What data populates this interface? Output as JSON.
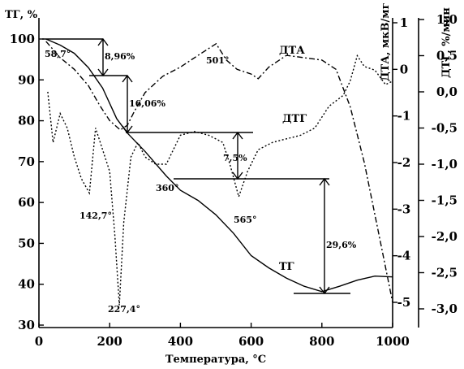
{
  "chart_data": {
    "type": "line",
    "xlabel": "Температура, °С",
    "y_left_label": "ТГ, %",
    "y_right1_label": "ДТА, мкВ/мг",
    "y_right2_label": "ДТГ, %/мин",
    "xlim": [
      0,
      1000
    ],
    "ylim_left": [
      30,
      100
    ],
    "ylim_right1": [
      -5,
      1
    ],
    "ylim_right2": [
      -3.0,
      1.0
    ],
    "x_ticks": [
      "0",
      "200",
      "400",
      "600",
      "800",
      "1000"
    ],
    "y_left_ticks": [
      "30",
      "40",
      "50",
      "60",
      "70",
      "80",
      "90",
      "100"
    ],
    "y_right1_ticks": [
      "-5",
      "-4",
      "-3",
      "-2",
      "-1",
      "0",
      "1"
    ],
    "y_right2_ticks": [
      "-3,0",
      "-2,5",
      "-2,0",
      "-1,5",
      "-1,0",
      "-0,5",
      "0,0",
      "0,5",
      "1,0"
    ],
    "series": [
      {
        "name": "ТГ",
        "axis": "left",
        "style": "solid",
        "x": [
          20,
          60,
          100,
          140,
          180,
          220,
          250,
          300,
          360,
          400,
          450,
          500,
          550,
          600,
          650,
          700,
          750,
          800,
          850,
          900,
          950,
          1000
        ],
        "y": [
          100,
          98.5,
          96.5,
          93,
          88,
          80.5,
          77,
          72.5,
          66.5,
          63,
          60.5,
          57,
          52.5,
          47,
          44,
          41.5,
          39.5,
          38.2,
          39.5,
          41,
          42,
          41.8
        ]
      },
      {
        "name": "ДТА",
        "axis": "right1",
        "style": "dash-dot",
        "x": [
          20,
          60,
          100,
          140,
          170,
          200,
          230,
          250,
          270,
          300,
          350,
          400,
          450,
          501,
          530,
          560,
          600,
          620,
          650,
          700,
          750,
          800,
          840,
          880,
          920,
          960,
          1000
        ],
        "y": [
          0.6,
          0.25,
          0,
          -0.35,
          -0.75,
          -1.1,
          -1.3,
          -1.2,
          -0.9,
          -0.5,
          -0.15,
          0.05,
          0.3,
          0.55,
          0.2,
          0.0,
          -0.1,
          -0.2,
          0.05,
          0.3,
          0.25,
          0.2,
          0.0,
          -0.8,
          -2.0,
          -3.5,
          -5.0
        ]
      },
      {
        "name": "ДТГ",
        "axis": "right2",
        "style": "dotted",
        "x": [
          25,
          40,
          60,
          80,
          100,
          120,
          142.7,
          160,
          180,
          200,
          215,
          227.4,
          240,
          260,
          280,
          300,
          330,
          360,
          400,
          440,
          480,
          520,
          540,
          565,
          590,
          620,
          660,
          700,
          740,
          780,
          820,
          860,
          880,
          900,
          920,
          950,
          980,
          1000
        ],
        "y": [
          0.0,
          -0.7,
          -0.3,
          -0.5,
          -0.9,
          -1.2,
          -1.4,
          -0.5,
          -0.8,
          -1.1,
          -2.0,
          -2.95,
          -1.8,
          -0.9,
          -0.7,
          -0.9,
          -1.0,
          -1.0,
          -0.6,
          -0.55,
          -0.6,
          -0.7,
          -1.0,
          -1.45,
          -1.1,
          -0.8,
          -0.7,
          -0.65,
          -0.6,
          -0.5,
          -0.2,
          -0.05,
          0.15,
          0.5,
          0.35,
          0.3,
          0.1,
          0.15
        ]
      }
    ],
    "annotations": {
      "peaks": [
        "58,7°",
        "142,7°",
        "227,4°",
        "360°",
        "501°",
        "565°"
      ],
      "mass_losses": [
        "8,96%",
        "16,06%",
        "7,5%",
        "29,6%"
      ]
    },
    "grid": false,
    "legend": "inline labels"
  }
}
